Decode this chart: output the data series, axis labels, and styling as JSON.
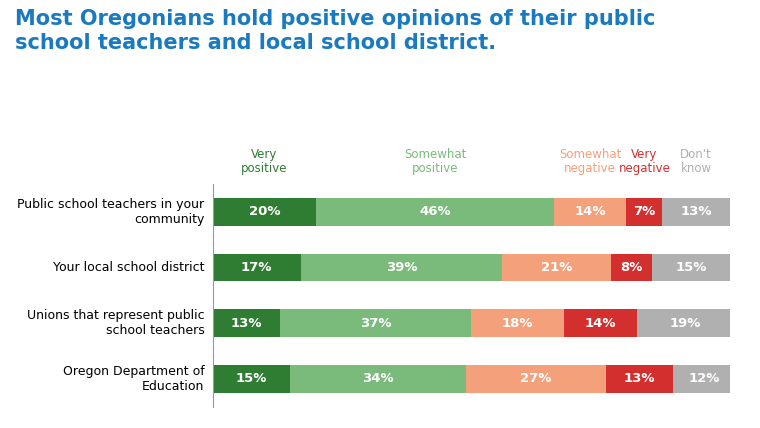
{
  "title_line1": "Most Oregonians hold positive opinions of their public",
  "title_line2": "school teachers and local school district.",
  "title_color": "#1a7abf",
  "categories": [
    "Public school teachers in your\ncommunity",
    "Your local school district",
    "Unions that represent public\nschool teachers",
    "Oregon Department of\nEducation"
  ],
  "segments_order": [
    "Very positive",
    "Somewhat positive",
    "Somewhat negative",
    "Very negative",
    "Don't know"
  ],
  "segments": {
    "Very positive": [
      20,
      17,
      13,
      15
    ],
    "Somewhat positive": [
      46,
      39,
      37,
      34
    ],
    "Somewhat negative": [
      14,
      21,
      18,
      27
    ],
    "Very negative": [
      7,
      8,
      14,
      13
    ],
    "Don't know": [
      13,
      15,
      19,
      12
    ]
  },
  "colors": {
    "Very positive": "#2e7d32",
    "Somewhat positive": "#7aba7a",
    "Somewhat negative": "#f4a07a",
    "Very negative": "#d32f2f",
    "Don't know": "#b0b0b0"
  },
  "legend_labels": [
    "Very\npositive",
    "Somewhat\npositive",
    "Somewhat\nnegative",
    "Very\nnegative",
    "Don't\nknow"
  ],
  "legend_text_colors": [
    "#2e7d32",
    "#7aba7a",
    "#f4a07a",
    "#d32f2f",
    "#b0b0b0"
  ],
  "bar_height": 0.5,
  "background_color": "#ffffff",
  "text_color": "#ffffff",
  "label_fontsize": 9.5,
  "title_fontsize": 15,
  "category_fontsize": 9,
  "legend_fontsize": 8.5
}
